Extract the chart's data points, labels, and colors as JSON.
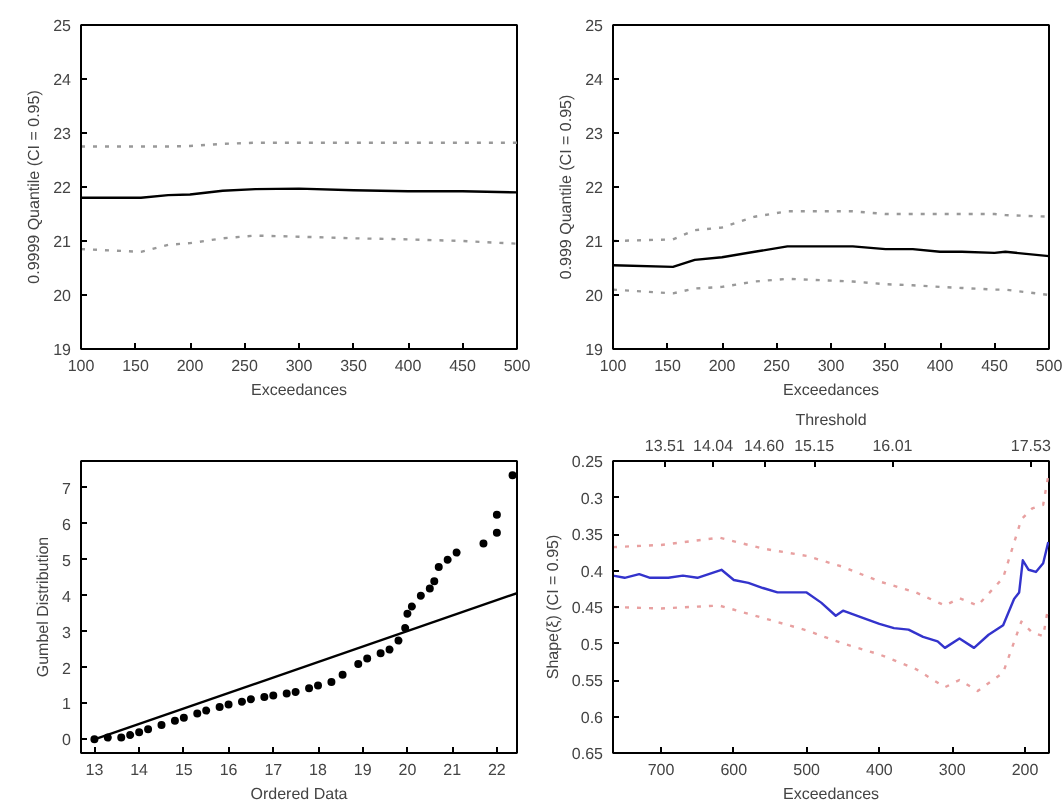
{
  "chart_data": [
    {
      "type": "line",
      "xlabel": "Exceedances",
      "ylabel": "0.9999 Quantile (CI = 0.95)",
      "xlim": [
        100,
        500
      ],
      "ylim": [
        19,
        25
      ],
      "xticks": [
        100,
        150,
        200,
        250,
        300,
        350,
        400,
        450,
        500
      ],
      "yticks": [
        19,
        20,
        21,
        22,
        23,
        24,
        25
      ],
      "x": [
        100,
        155,
        180,
        200,
        230,
        260,
        300,
        350,
        400,
        450,
        500
      ],
      "series": [
        {
          "color": "#000000",
          "line_style": "solid",
          "values": [
            21.8,
            21.8,
            21.85,
            21.86,
            21.93,
            21.96,
            21.97,
            21.94,
            21.92,
            21.92,
            21.9
          ]
        },
        {
          "color": "#999999",
          "line_style": "dotted",
          "values": [
            22.75,
            22.75,
            22.75,
            22.76,
            22.8,
            22.82,
            22.82,
            22.82,
            22.82,
            22.82,
            22.82
          ]
        },
        {
          "color": "#999999",
          "line_style": "dotted",
          "values": [
            20.85,
            20.8,
            20.93,
            20.96,
            21.05,
            21.1,
            21.08,
            21.05,
            21.03,
            21.0,
            20.95
          ]
        }
      ]
    },
    {
      "type": "line",
      "xlabel": "Exceedances",
      "ylabel": "0.999 Quantile (CI = 0.95)",
      "xlim": [
        100,
        500
      ],
      "ylim": [
        19,
        25
      ],
      "xticks": [
        100,
        150,
        200,
        250,
        300,
        350,
        400,
        450,
        500
      ],
      "yticks": [
        19,
        20,
        21,
        22,
        23,
        24,
        25
      ],
      "x": [
        100,
        155,
        175,
        200,
        230,
        260,
        320,
        350,
        375,
        400,
        420,
        450,
        460,
        500
      ],
      "series": [
        {
          "color": "#000000",
          "line_style": "solid",
          "values": [
            20.55,
            20.52,
            20.65,
            20.7,
            20.8,
            20.9,
            20.9,
            20.85,
            20.85,
            20.8,
            20.8,
            20.78,
            20.8,
            20.72
          ]
        },
        {
          "color": "#999999",
          "line_style": "dotted",
          "values": [
            21.0,
            21.03,
            21.2,
            21.25,
            21.45,
            21.55,
            21.55,
            21.5,
            21.5,
            21.5,
            21.5,
            21.5,
            21.48,
            21.45
          ]
        },
        {
          "color": "#999999",
          "line_style": "dotted",
          "values": [
            20.1,
            20.03,
            20.12,
            20.15,
            20.25,
            20.3,
            20.25,
            20.2,
            20.18,
            20.15,
            20.13,
            20.1,
            20.1,
            20.0
          ]
        }
      ]
    },
    {
      "type": "scatter",
      "xlabel": "Ordered Data",
      "ylabel": "Gumbel Distribution",
      "xlim": [
        12.7,
        22.45
      ],
      "ylim": [
        -0.38,
        7.75
      ],
      "xticks": [
        13,
        14,
        15,
        16,
        17,
        18,
        19,
        20,
        21,
        22
      ],
      "yticks": [
        0,
        1,
        2,
        3,
        4,
        5,
        6,
        7
      ],
      "series": [
        {
          "type": "line",
          "color": "#000000",
          "x": [
            13.0,
            22.45
          ],
          "values": [
            0.0,
            4.07
          ]
        },
        {
          "type": "scatter",
          "marker": "circle",
          "color": "#000000",
          "x": [
            13.0,
            13.3,
            13.6,
            13.8,
            14.0,
            14.2,
            14.5,
            14.8,
            15.0,
            15.3,
            15.5,
            15.8,
            16.0,
            16.3,
            16.5,
            16.8,
            17.0,
            17.3,
            17.5,
            17.8,
            18.0,
            18.3,
            18.55,
            18.9,
            19.1,
            19.4,
            19.6,
            19.8,
            19.95,
            20.0,
            20.1,
            20.3,
            20.5,
            20.6,
            20.7,
            20.9,
            21.1,
            21.7,
            22.0,
            22.0,
            22.35
          ],
          "values": [
            0.0,
            0.05,
            0.05,
            0.12,
            0.2,
            0.28,
            0.4,
            0.52,
            0.6,
            0.72,
            0.8,
            0.9,
            0.97,
            1.05,
            1.12,
            1.18,
            1.22,
            1.28,
            1.32,
            1.42,
            1.5,
            1.6,
            1.8,
            2.1,
            2.25,
            2.4,
            2.5,
            2.75,
            3.1,
            3.5,
            3.7,
            4.0,
            4.2,
            4.4,
            4.8,
            5.0,
            5.2,
            5.45,
            5.75,
            6.25,
            7.35
          ]
        }
      ]
    },
    {
      "type": "line",
      "xlabel": "Exceedances",
      "ylabel": "Shape(ξ) (CI = 0.95)",
      "x2label": "Threshold",
      "xlim": [
        766,
        167
      ],
      "ylim": [
        0.65,
        0.25
      ],
      "xticks": [
        700,
        600,
        500,
        400,
        300,
        200
      ],
      "yticks": [
        0.25,
        0.3,
        0.35,
        0.4,
        0.45,
        0.5,
        0.55,
        0.6,
        0.65
      ],
      "x2lim": [
        12.94,
        17.73
      ],
      "x2ticks": [
        13.51,
        14.04,
        {
          "value": 14.6,
          "label": "14.60"
        },
        15.15,
        16.01,
        17.53
      ],
      "series": [
        {
          "color": "#3333cc",
          "line_style": "solid",
          "x": [
            766,
            750,
            730,
            715,
            690,
            670,
            650,
            617,
            600,
            580,
            560,
            540,
            500,
            480,
            460,
            450,
            420,
            400,
            380,
            360,
            340,
            320,
            310,
            290,
            270,
            250,
            230,
            215,
            208,
            203,
            195,
            185,
            175,
            168
          ],
          "values": [
            0.407,
            0.41,
            0.405,
            0.41,
            0.41,
            0.407,
            0.41,
            0.399,
            0.413,
            0.417,
            0.424,
            0.43,
            0.43,
            0.444,
            0.462,
            0.455,
            0.466,
            0.473,
            0.479,
            0.481,
            0.491,
            0.497,
            0.506,
            0.493,
            0.506,
            0.488,
            0.475,
            0.439,
            0.43,
            0.386,
            0.399,
            0.402,
            0.39,
            0.361
          ]
        },
        {
          "color": "#e8a0a0",
          "line_style": "dotted",
          "x": [
            766,
            700,
            620,
            560,
            500,
            450,
            400,
            350,
            310,
            290,
            265,
            230,
            205,
            190,
            175,
            168
          ],
          "values": [
            0.368,
            0.365,
            0.355,
            0.37,
            0.38,
            0.395,
            0.415,
            0.43,
            0.448,
            0.438,
            0.448,
            0.41,
            0.33,
            0.315,
            0.31,
            0.27
          ]
        },
        {
          "color": "#e8a0a0",
          "line_style": "dotted",
          "x": [
            766,
            700,
            620,
            560,
            500,
            450,
            400,
            350,
            310,
            290,
            265,
            230,
            205,
            190,
            175,
            168
          ],
          "values": [
            0.45,
            0.452,
            0.448,
            0.465,
            0.482,
            0.5,
            0.515,
            0.535,
            0.56,
            0.55,
            0.565,
            0.54,
            0.47,
            0.485,
            0.49,
            0.45
          ]
        }
      ]
    }
  ]
}
